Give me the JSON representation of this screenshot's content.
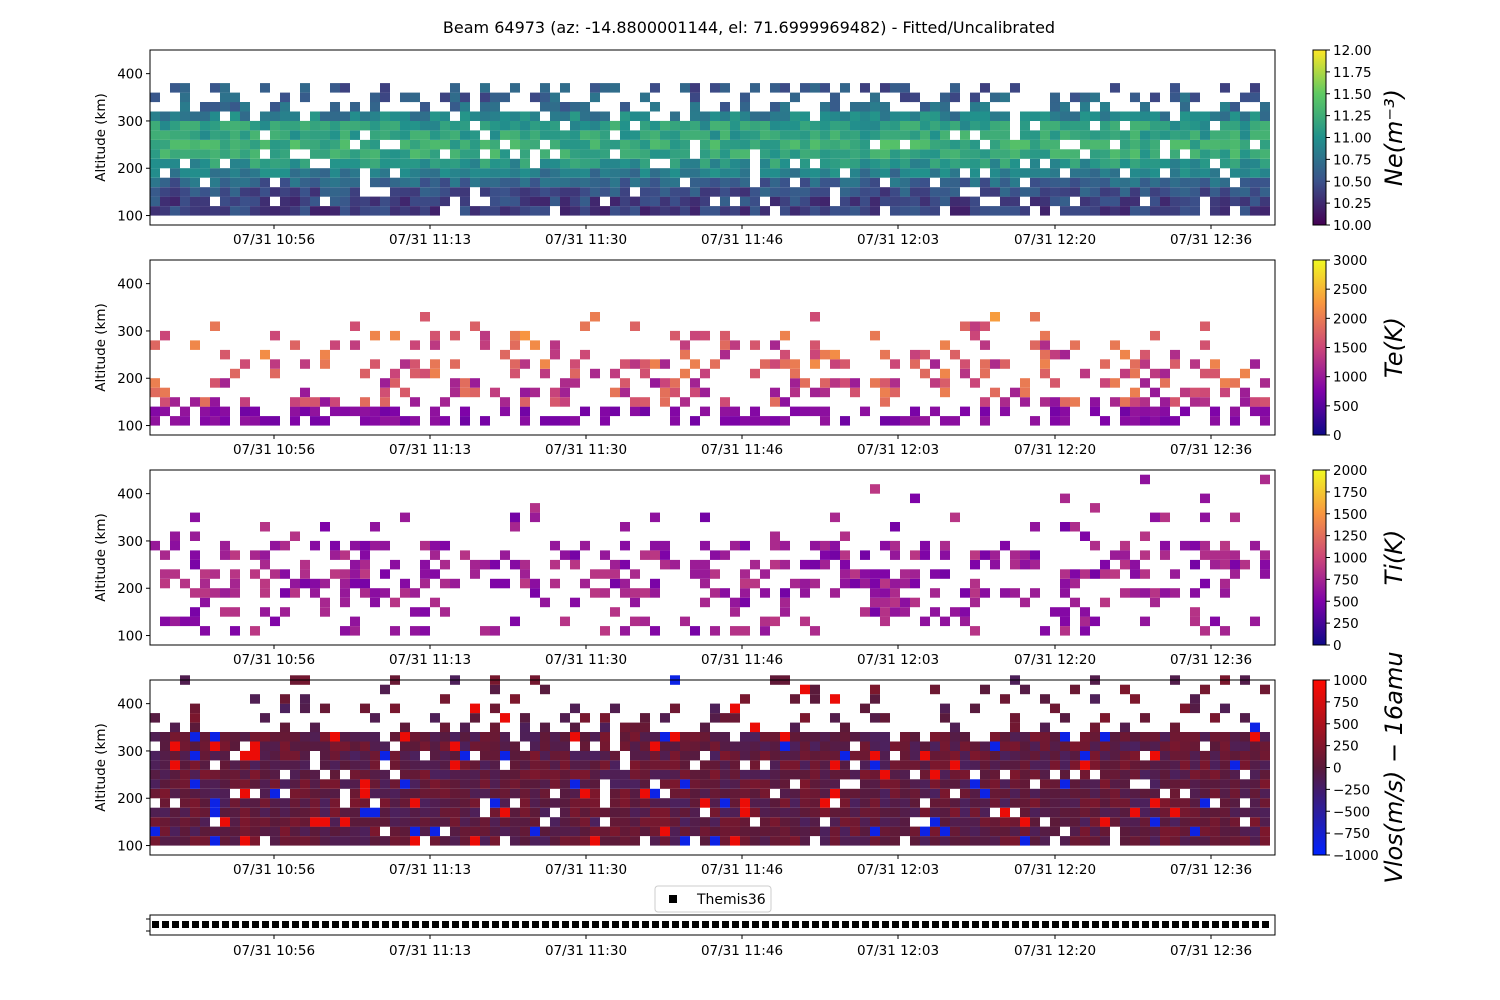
{
  "title": "Beam 64973 (az: -14.8800001144, el: 71.6999969482) - Fitted/Uncalibrated",
  "time_ticks": [
    "07/31 10:56",
    "07/31 11:13",
    "07/31 11:30",
    "07/31 11:46",
    "07/31 12:03",
    "07/31 12:20",
    "07/31 12:36"
  ],
  "chart_data": [
    {
      "type": "heatmap",
      "id": "ne",
      "ylabel": "Altitude (km)",
      "ylim": [
        80,
        450
      ],
      "yticks": [
        "100",
        "200",
        "300",
        "400"
      ],
      "colorbar_label": "Ne(m⁻³)",
      "colormap": "viridis",
      "vrange": [
        10.0,
        12.0
      ],
      "colorbar_ticks": [
        "10.00",
        "10.25",
        "10.50",
        "10.75",
        "11.00",
        "11.25",
        "11.50",
        "11.75",
        "12.00"
      ],
      "altitude_range_km": [
        100,
        380
      ],
      "typical_value_profile": "≈10.4 near 100 km, peak ≈11.3 at 220–250 km, ≈10.9 above 300 km"
    },
    {
      "type": "heatmap",
      "id": "te",
      "ylabel": "Altitude (km)",
      "ylim": [
        80,
        450
      ],
      "yticks": [
        "100",
        "200",
        "300",
        "400"
      ],
      "colorbar_label": "Te(K)",
      "colormap": "plasma",
      "vrange": [
        0,
        3000
      ],
      "colorbar_ticks": [
        "0",
        "500",
        "1000",
        "1500",
        "2000",
        "2500",
        "3000"
      ],
      "altitude_range_km": [
        100,
        340
      ],
      "typical_value_profile": "≈700 K near 100 km, 1200–2000 K above 200 km, sparse coverage"
    },
    {
      "type": "heatmap",
      "id": "ti",
      "ylabel": "Altitude (km)",
      "ylim": [
        80,
        450
      ],
      "yticks": [
        "100",
        "200",
        "300",
        "400"
      ],
      "colorbar_label": "Ti(K)",
      "colormap": "plasma",
      "vrange": [
        0,
        2000
      ],
      "colorbar_ticks": [
        "0",
        "250",
        "500",
        "750",
        "1000",
        "1250",
        "1500",
        "1750",
        "2000"
      ],
      "altitude_range_km": [
        100,
        450
      ],
      "typical_value_profile": "≈500–900 K, sparse coverage"
    },
    {
      "type": "heatmap",
      "id": "vlos",
      "ylabel": "Altitude (km)",
      "ylim": [
        80,
        450
      ],
      "yticks": [
        "100",
        "200",
        "300",
        "400"
      ],
      "colorbar_label": "Vlos(m/s) − 16amu",
      "colormap": "blue-darkred-red",
      "vrange": [
        -1000,
        1000
      ],
      "colorbar_ticks": [
        "−1000",
        "−750",
        "−500",
        "−250",
        "0",
        "250",
        "500",
        "750",
        "1000"
      ],
      "altitude_range_km": [
        100,
        450
      ],
      "typical_value_profile": "mostly −250 to +250 m/s, scattered ±1000 extremes"
    },
    {
      "type": "scatter",
      "id": "themis",
      "legend": [
        "Themis36"
      ],
      "legend_placement": "top-center",
      "marker": "square",
      "description": "uniformly spaced markers across the full time range"
    }
  ],
  "colors": {
    "themis_marker": "#000000",
    "background": "#ffffff",
    "axis": "#000000"
  }
}
